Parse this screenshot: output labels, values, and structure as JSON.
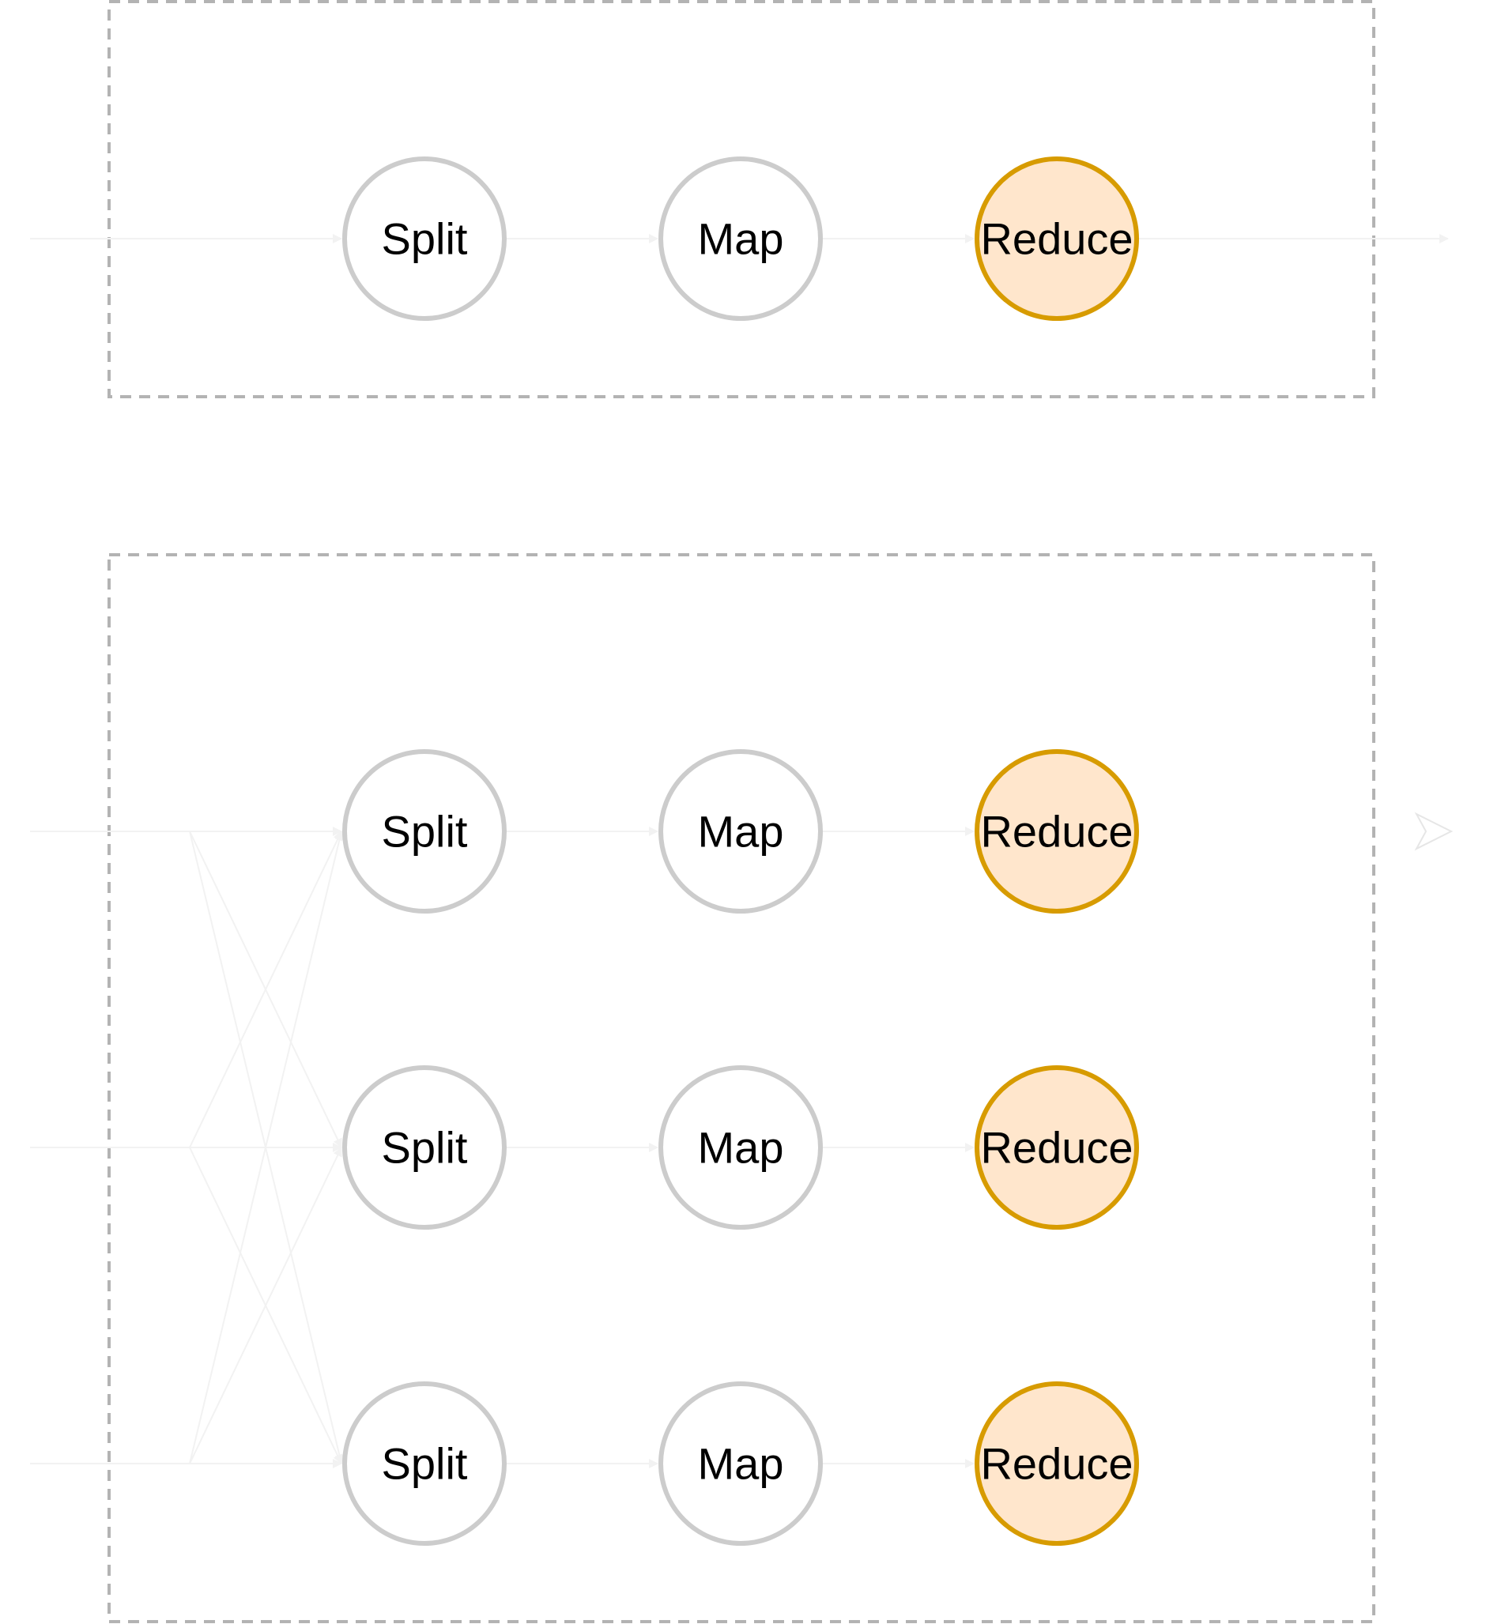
{
  "colors": {
    "stage_stroke": "#cccccc",
    "stage_fill": "#ffffff",
    "reduce_stroke": "#d79b00",
    "reduce_fill": "#ffe6cc",
    "group_border": "#b3b3b3",
    "edge": "#f2f2f2"
  },
  "groups": [
    {
      "name": "single-pipeline",
      "rows": [
        {
          "split": "Split",
          "map": "Map",
          "reduce": "Reduce"
        }
      ]
    },
    {
      "name": "parallel-pipelines",
      "rows": [
        {
          "split": "Split",
          "map": "Map",
          "reduce": "Reduce"
        },
        {
          "split": "Split",
          "map": "Map",
          "reduce": "Reduce"
        },
        {
          "split": "Split",
          "map": "Map",
          "reduce": "Reduce"
        }
      ]
    }
  ]
}
